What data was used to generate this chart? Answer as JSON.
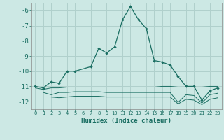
{
  "xlabel": "Humidex (Indice chaleur)",
  "background_color": "#cce8e4",
  "grid_color": "#b0d0cc",
  "line_color": "#1a6e62",
  "xlim": [
    -0.5,
    23.5
  ],
  "ylim": [
    -12.5,
    -5.5
  ],
  "yticks": [
    -12,
    -11,
    -10,
    -9,
    -8,
    -7,
    -6
  ],
  "xticks": [
    0,
    1,
    2,
    3,
    4,
    5,
    6,
    7,
    8,
    9,
    10,
    11,
    12,
    13,
    14,
    15,
    16,
    17,
    18,
    19,
    20,
    21,
    22,
    23
  ],
  "main_x": [
    0,
    1,
    2,
    3,
    4,
    5,
    7,
    8,
    9,
    10,
    11,
    12,
    13,
    14,
    15,
    16,
    17,
    18,
    19,
    20,
    21,
    22,
    23
  ],
  "main_y": [
    -11.0,
    -11.1,
    -10.7,
    -10.8,
    -10.0,
    -10.0,
    -9.7,
    -8.5,
    -8.8,
    -8.4,
    -6.6,
    -5.75,
    -6.6,
    -7.2,
    -9.3,
    -9.4,
    -9.6,
    -10.35,
    -11.0,
    -11.0,
    -11.9,
    -11.3,
    -11.1
  ],
  "line2_x": [
    0,
    1,
    2,
    3,
    4,
    5,
    6,
    7,
    8,
    9,
    10,
    11,
    12,
    13,
    14,
    15,
    16,
    17,
    18,
    19,
    20,
    21,
    22,
    23
  ],
  "line2_y": [
    -11.1,
    -11.2,
    -11.1,
    -11.1,
    -11.05,
    -11.05,
    -11.05,
    -11.05,
    -11.05,
    -11.05,
    -11.05,
    -11.05,
    -11.05,
    -11.05,
    -11.05,
    -11.05,
    -11.0,
    -11.0,
    -11.05,
    -11.05,
    -11.05,
    -11.05,
    -11.0,
    -11.0
  ],
  "line3_x": [
    1,
    2,
    3,
    4,
    5,
    6,
    7,
    8,
    9,
    10,
    11,
    12,
    13,
    14,
    15,
    16,
    17,
    18,
    19,
    20,
    21,
    22,
    23
  ],
  "line3_y": [
    -11.4,
    -11.55,
    -11.4,
    -11.4,
    -11.35,
    -11.35,
    -11.35,
    -11.35,
    -11.4,
    -11.4,
    -11.4,
    -11.4,
    -11.4,
    -11.4,
    -11.4,
    -11.4,
    -11.4,
    -12.05,
    -11.55,
    -11.6,
    -12.1,
    -11.55,
    -11.45
  ],
  "line4_x": [
    2,
    3,
    4,
    5,
    6,
    7,
    8,
    9,
    10,
    11,
    12,
    13,
    14,
    15,
    16,
    17,
    18,
    19,
    20,
    21,
    22,
    23
  ],
  "line4_y": [
    -11.7,
    -11.75,
    -11.7,
    -11.65,
    -11.65,
    -11.65,
    -11.65,
    -11.7,
    -11.7,
    -11.7,
    -11.7,
    -11.7,
    -11.7,
    -11.7,
    -11.7,
    -11.7,
    -12.15,
    -11.85,
    -11.9,
    -12.2,
    -11.85,
    -11.75
  ]
}
